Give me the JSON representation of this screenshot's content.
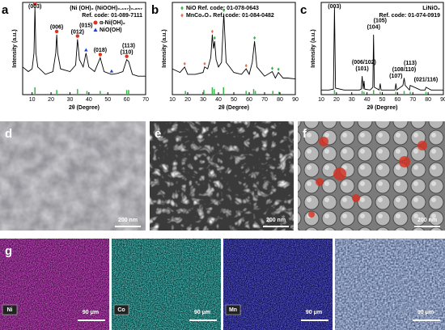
{
  "chart_data": [
    {
      "type": "line",
      "panel": "a",
      "title": [
        "(Ni (OH)₂ (NiOOH)₀.₁₆₇)₀.₈₅₇",
        "Ref. code: 01-089-7111"
      ],
      "ylabel": "Intensity (a.u.)",
      "xlabel": "2θ (Degree)",
      "xlim": [
        5,
        70
      ],
      "xticks": [
        10,
        20,
        30,
        40,
        50,
        60,
        70
      ],
      "ylim": [
        0,
        100
      ],
      "color": "#000000",
      "x": [
        5,
        8,
        10,
        11,
        11.5,
        12,
        13,
        17,
        21,
        22.5,
        23,
        23.5,
        25,
        30,
        33,
        34,
        35,
        37,
        38.5,
        40,
        43,
        46,
        48,
        52,
        55,
        58,
        60,
        61,
        63,
        66,
        70
      ],
      "values": [
        30,
        25,
        28,
        45,
        95,
        45,
        30,
        22,
        25,
        45,
        65,
        45,
        28,
        25,
        32,
        60,
        38,
        30,
        45,
        30,
        25,
        40,
        25,
        22,
        23,
        25,
        38,
        36,
        22,
        20,
        20
      ],
      "legend": [
        {
          "name": "α-Ni(OH)₂",
          "color": "#e0301e",
          "marker": "circle"
        },
        {
          "name": "NiO(OH)",
          "color": "#2040c0",
          "marker": "triangle"
        }
      ],
      "annotations": [
        {
          "text": "(003)",
          "x": 11.5
        },
        {
          "text": "(006)",
          "x": 23
        },
        {
          "text": "(012)",
          "x": 34
        },
        {
          "text": "(015)",
          "x": 38.5
        },
        {
          "text": "(018)",
          "x": 46
        },
        {
          "text": "(110)",
          "x": 60
        },
        {
          "text": "(113)",
          "x": 61
        }
      ],
      "markers": [
        {
          "x": 11.5,
          "legend": 0
        },
        {
          "x": 23,
          "legend": 0
        },
        {
          "x": 34,
          "legend": 0
        },
        {
          "x": 46,
          "legend": 0
        },
        {
          "x": 60,
          "legend": 0
        },
        {
          "x": 38.5,
          "legend": 1
        },
        {
          "x": 52,
          "legend": 1
        }
      ],
      "sticks": {
        "color": "#3cb34a",
        "x": [
          11.5,
          23,
          34,
          39,
          46,
          60,
          61
        ],
        "values": [
          8,
          5,
          6,
          4,
          4,
          5,
          5
        ]
      }
    },
    {
      "type": "line",
      "panel": "b",
      "ylabel": "Intensity (a.u.)",
      "xlabel": "2θ (Degree)",
      "xlim": [
        10,
        90
      ],
      "xticks": [
        10,
        20,
        30,
        40,
        50,
        60,
        70,
        80,
        90
      ],
      "ylim": [
        0,
        100
      ],
      "color": "#000000",
      "x": [
        10,
        15,
        18,
        20,
        25,
        30,
        31,
        33,
        35,
        36,
        36.8,
        37.5,
        38.5,
        40,
        42,
        43.5,
        45,
        50,
        55,
        58,
        60,
        62,
        63.5,
        65,
        70,
        75,
        77,
        79,
        82,
        85,
        90
      ],
      "values": [
        28,
        24,
        30,
        22,
        22,
        24,
        30,
        28,
        40,
        65,
        50,
        58,
        38,
        30,
        35,
        88,
        35,
        24,
        22,
        28,
        22,
        35,
        58,
        30,
        20,
        25,
        18,
        24,
        18,
        18,
        17
      ],
      "legend": [
        {
          "name": "NiO Ref. code: 01-078-0643",
          "color": "#3cb34a",
          "marker": "diamond"
        },
        {
          "name": "MnCo₂O₄ Ref. code: 01-084-0482",
          "color": "#e07050",
          "marker": "diamond"
        }
      ],
      "markers": [
        {
          "x": 37.5,
          "legend": 0
        },
        {
          "x": 43.5,
          "legend": 0
        },
        {
          "x": 63.5,
          "legend": 0
        },
        {
          "x": 75,
          "legend": 0
        },
        {
          "x": 79,
          "legend": 0
        },
        {
          "x": 18,
          "legend": 1
        },
        {
          "x": 31,
          "legend": 1
        },
        {
          "x": 36,
          "legend": 1
        },
        {
          "x": 58,
          "legend": 1
        }
      ],
      "sticks": {
        "color": "#3cb34a",
        "x": [
          18.5,
          30.5,
          36,
          37.2,
          43.3,
          58,
          62.9,
          64,
          75.4,
          79.4
        ],
        "values": [
          4,
          5,
          8,
          6,
          8,
          4,
          6,
          4,
          4,
          3
        ]
      }
    },
    {
      "type": "line",
      "panel": "c",
      "title": [
        "LiNiO₂",
        "Ref. code: 01-074-0919"
      ],
      "ylabel": "Intensity (a.u.)",
      "xlabel": "2θ (Degree)",
      "xlim": [
        10,
        90
      ],
      "xticks": [
        10,
        20,
        30,
        40,
        50,
        60,
        70,
        80,
        90
      ],
      "ylim": [
        0,
        100
      ],
      "color": "#000000",
      "x": [
        10,
        15,
        18,
        18.7,
        19.4,
        25,
        30,
        35,
        36.2,
        36.8,
        37.5,
        38,
        38.5,
        42,
        43.8,
        44.3,
        44.8,
        48,
        48.6,
        49.2,
        55,
        58.3,
        58.9,
        59.5,
        63.5,
        64.3,
        65,
        67.8,
        68.3,
        75,
        78,
        78.6,
        82,
        90
      ],
      "values": [
        5,
        5,
        6,
        95,
        7,
        5,
        5,
        5,
        6,
        20,
        6,
        15,
        6,
        5,
        8,
        65,
        8,
        5,
        12,
        5,
        5,
        5,
        12,
        5,
        10,
        18,
        10,
        5,
        10,
        5,
        5,
        8,
        5,
        5
      ],
      "annotations": [
        {
          "text": "(003)",
          "x": 18.7
        },
        {
          "text": "(101)",
          "x": 36.8
        },
        {
          "text": "(006/102)",
          "x": 38
        },
        {
          "text": "(104)",
          "x": 44.3
        },
        {
          "text": "(105)",
          "x": 48.6
        },
        {
          "text": "(107)",
          "x": 58.9
        },
        {
          "text": "(108/110)",
          "x": 64.3
        },
        {
          "text": "(113)",
          "x": 68.3
        },
        {
          "text": "(021/116)",
          "x": 78.6
        }
      ],
      "sticks": {
        "color": "#3cb34a",
        "x": [
          18.7,
          36.8,
          38,
          44.3,
          48.6,
          58.9,
          64.3,
          68.3,
          78.6
        ],
        "values": [
          5,
          4,
          3,
          5,
          3,
          3,
          4,
          3,
          3
        ]
      }
    }
  ],
  "images": [
    {
      "label": "d",
      "scale": "200 nm"
    },
    {
      "label": "e",
      "scale": "200 nm"
    },
    {
      "label": "f",
      "scale": "200 nm"
    }
  ],
  "maps": {
    "label": "g",
    "items": [
      {
        "element": "Ni",
        "scale": "90 μm"
      },
      {
        "element": "Co",
        "scale": "90 μm"
      },
      {
        "element": "Mn",
        "scale": "90 μm"
      },
      {
        "element": null,
        "scale": "90 μm"
      }
    ]
  }
}
